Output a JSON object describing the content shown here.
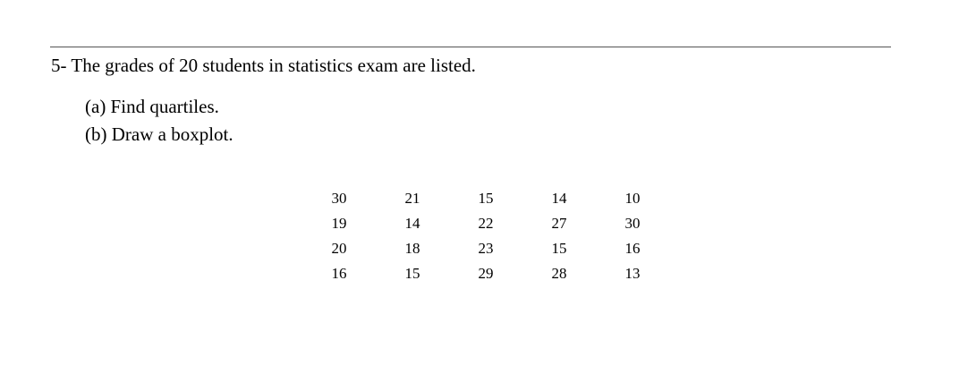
{
  "problem": {
    "heading": "5- The grades of 20 students in statistics exam are listed.",
    "parts": [
      "(a) Find quartiles.",
      "(b) Draw a boxplot."
    ]
  },
  "grades": {
    "rows": [
      [
        "30",
        "21",
        "15",
        "14",
        "10"
      ],
      [
        "19",
        "14",
        "22",
        "27",
        "30"
      ],
      [
        "20",
        "18",
        "23",
        "15",
        "16"
      ],
      [
        "16",
        "15",
        "29",
        "28",
        "13"
      ]
    ]
  }
}
